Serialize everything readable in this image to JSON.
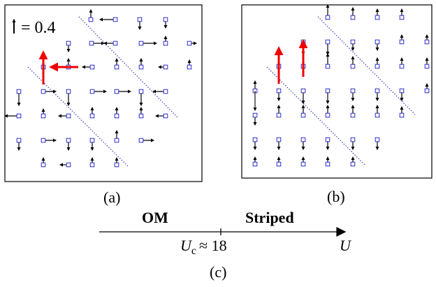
{
  "panel_a": {
    "label": "(a)",
    "scale_text": "= 0.4"
  },
  "panel_b": {
    "label": "(b)"
  },
  "phase_axis": {
    "left_phase": "OM",
    "right_phase": "Striped",
    "critical_symbol": "U",
    "critical_subscript": "c",
    "critical_value": "≈ 18",
    "axis_symbol": "U",
    "label": "(c)"
  },
  "colors": {
    "arrow": "#000000",
    "highlight_arrow": "#ee0000",
    "site_box": "#2d2dc8",
    "stripe_line": "#3b3bc0"
  }
}
